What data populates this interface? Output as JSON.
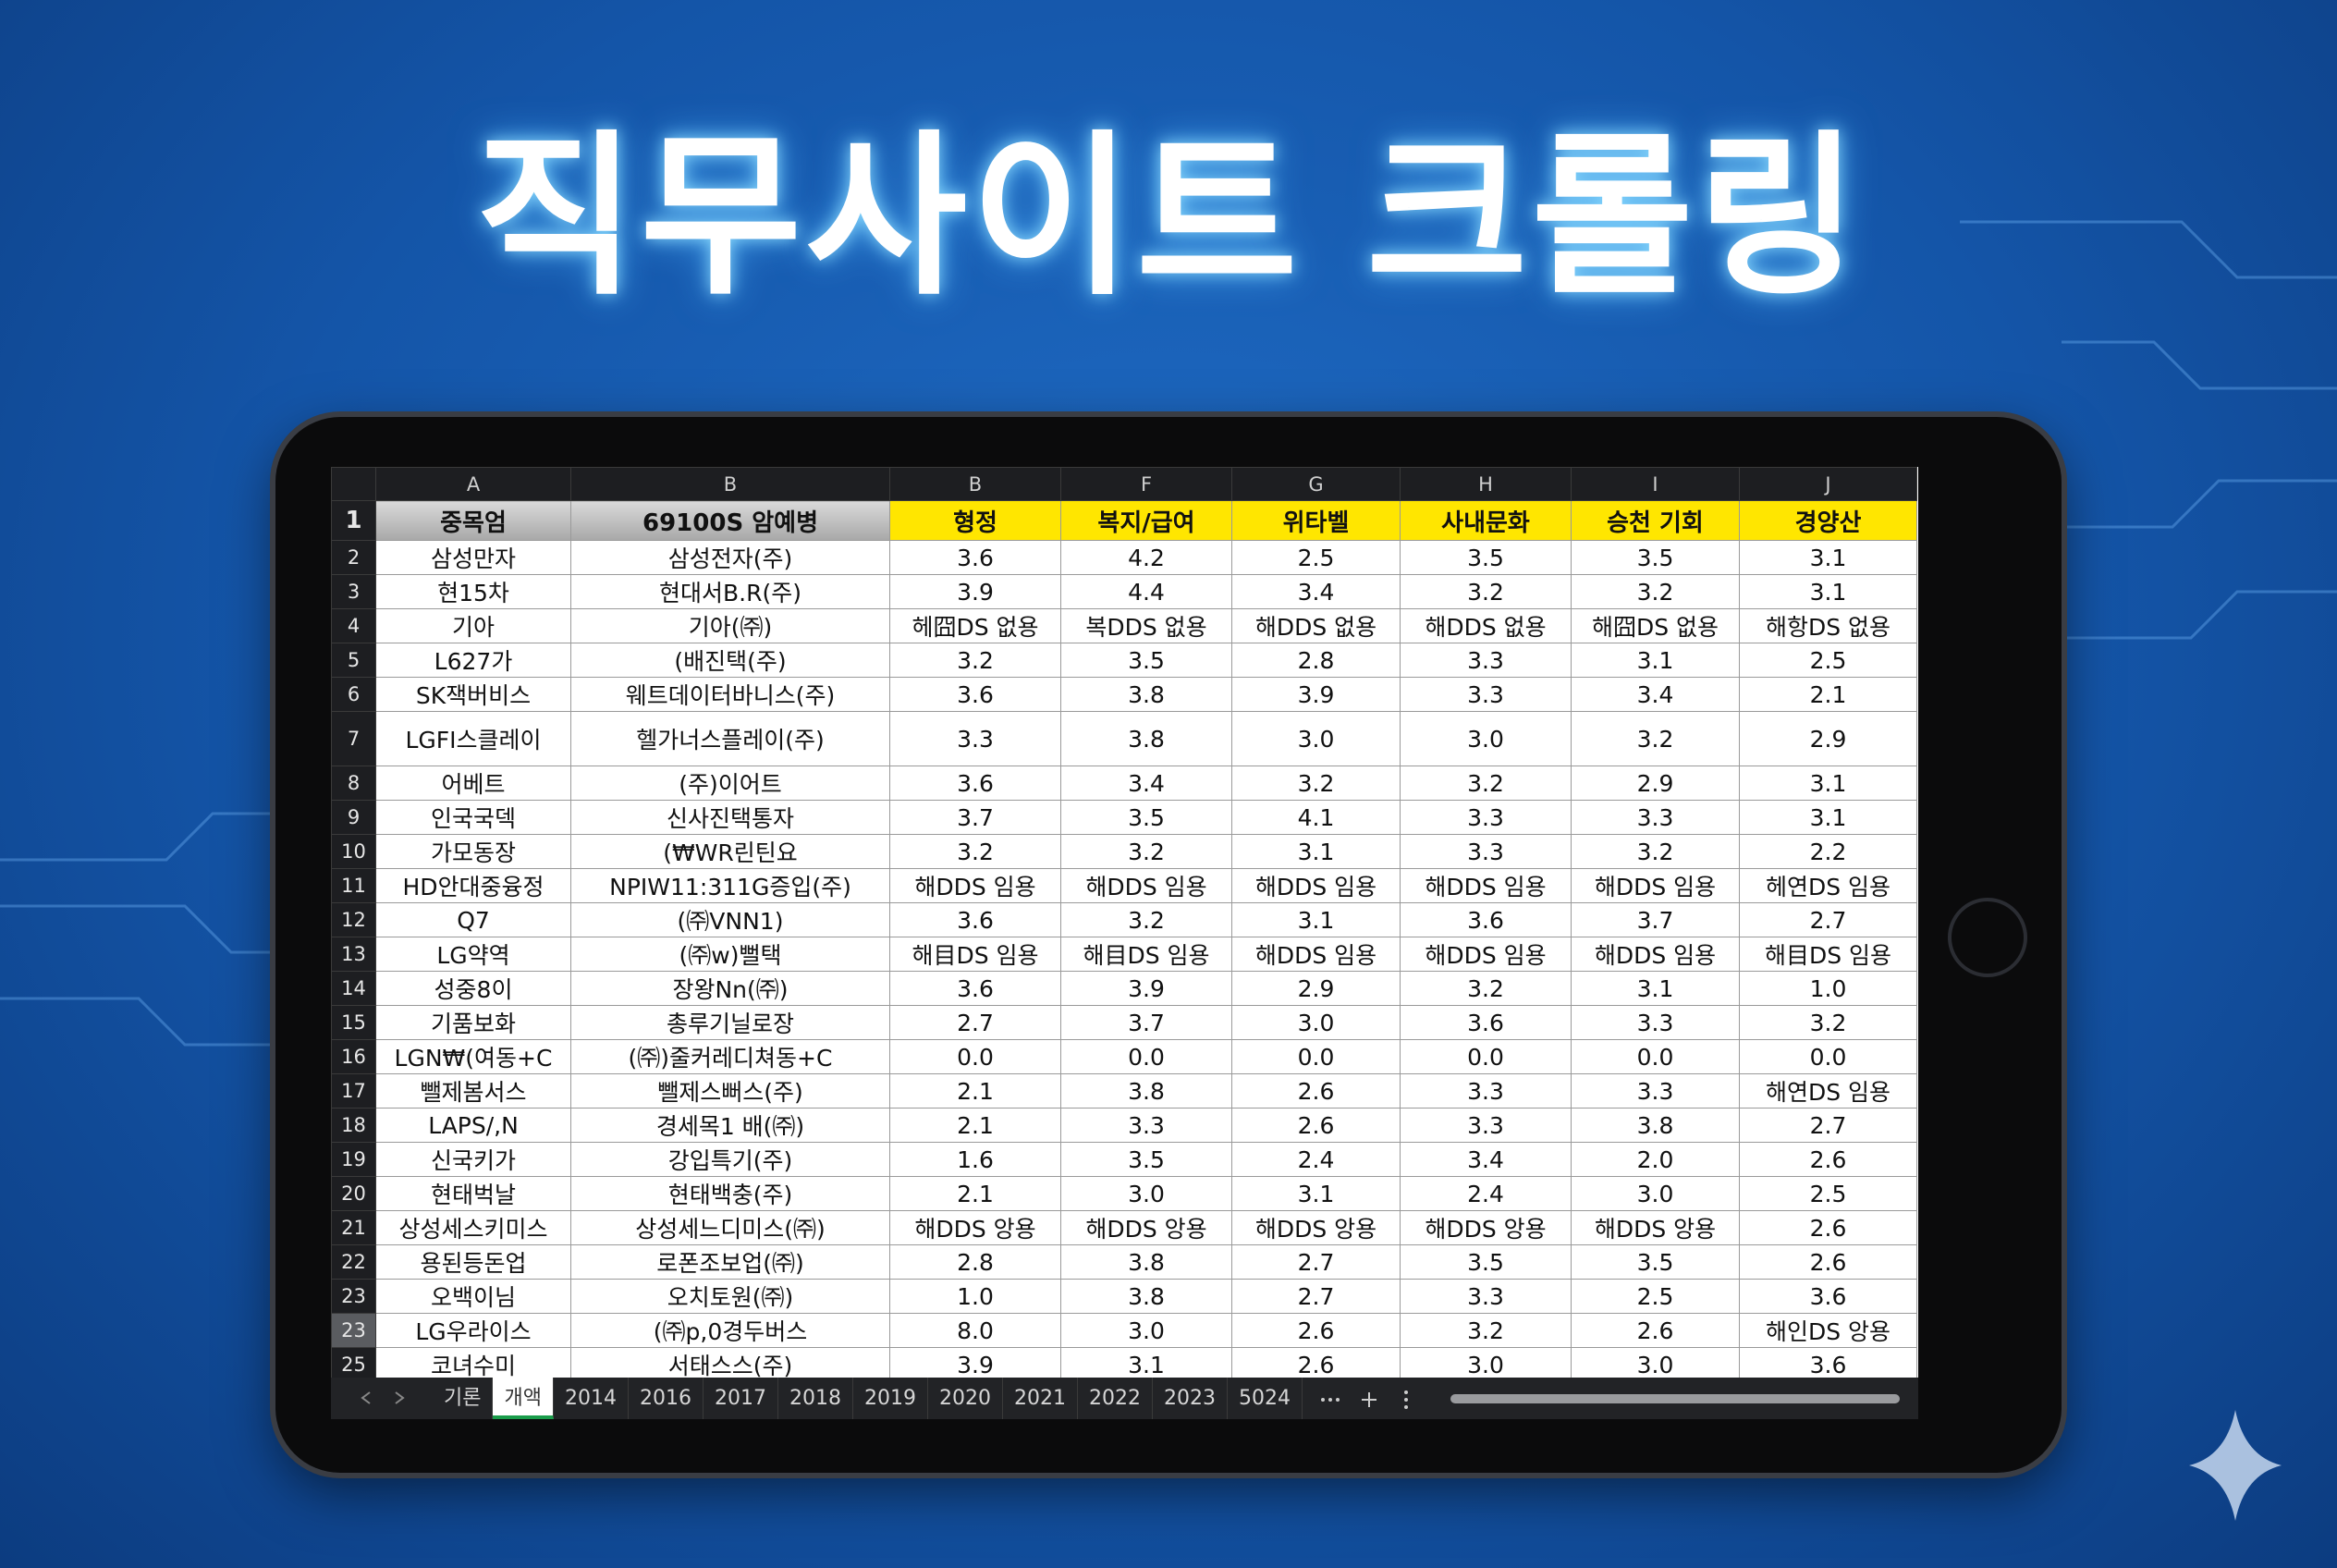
{
  "title": "직무사이트 크롤링",
  "sheet": {
    "column_letters": [
      "A",
      "B",
      "B",
      "F",
      "G",
      "H",
      "I",
      "J"
    ],
    "row_numbers": [
      "1",
      "2",
      "3",
      "4",
      "5",
      "6",
      "7",
      "8",
      "9",
      "10",
      "11",
      "12",
      "13",
      "14",
      "15",
      "16",
      "17",
      "18",
      "19",
      "20",
      "21",
      "22",
      "23",
      "23",
      "25"
    ],
    "rows": [
      [
        "중목엄",
        "69100S 암예병",
        "형정",
        "복지/급여",
        "위타벨",
        "사내문화",
        "승천 기회",
        "경양산"
      ],
      [
        "삼성만자",
        "삼성전자(주)",
        "3.6",
        "4.2",
        "2.5",
        "3.5",
        "3.5",
        "3.1"
      ],
      [
        "현15차",
        "현대서B.R(주)",
        "3.9",
        "4.4",
        "3.4",
        "3.2",
        "3.2",
        "3.1"
      ],
      [
        "기아",
        "기아(㈜)",
        "헤囧DS 없용",
        "복DDS 없용",
        "해DDS 없용",
        "해DDS 없용",
        "해囧DS 없용",
        "해항DS 없용"
      ],
      [
        "L627가",
        "(배진택(주)",
        "3.2",
        "3.5",
        "2.8",
        "3.3",
        "3.1",
        "2.5"
      ],
      [
        "SK잭버비스",
        "웨트데이터바니스(주)",
        "3.6",
        "3.8",
        "3.9",
        "3.3",
        "3.4",
        "2.1"
      ],
      [
        "LGFI스클레이",
        "헬가너스플레이(주)",
        "3.3",
        "3.8",
        "3.0",
        "3.0",
        "3.2",
        "2.9"
      ],
      [
        "어베트",
        "(주)이어트",
        "3.6",
        "3.4",
        "3.2",
        "3.2",
        "2.9",
        "3.1"
      ],
      [
        "인국국덱",
        "신사진택통자",
        "3.7",
        "3.5",
        "4.1",
        "3.3",
        "3.3",
        "3.1"
      ],
      [
        "가모동장",
        "(₩WR린틴요",
        "3.2",
        "3.2",
        "3.1",
        "3.3",
        "3.2",
        "2.2"
      ],
      [
        "HD안대중융정",
        "NPIW11:311G증입(주)",
        "해DDS 임용",
        "해DDS 임용",
        "해DDS 임용",
        "해DDS 임용",
        "해DDS 임용",
        "헤연DS 임용"
      ],
      [
        "Q7",
        "(㈜VNN1)",
        "3.6",
        "3.2",
        "3.1",
        "3.6",
        "3.7",
        "2.7"
      ],
      [
        "LG약역",
        "(㈜w)뻘택",
        "해目DS 임용",
        "해目DS 임용",
        "해DDS 임용",
        "해DDS 임용",
        "해DDS 임용",
        "해目DS 임용"
      ],
      [
        "성중8이",
        "장왕Nn(㈜)",
        "3.6",
        "3.9",
        "2.9",
        "3.2",
        "3.1",
        "1.0"
      ],
      [
        "기품보화",
        "총루기닐로장",
        "2.7",
        "3.7",
        "3.0",
        "3.6",
        "3.3",
        "3.2"
      ],
      [
        "LGN₩(여동+C",
        "(㈜)줄커레디쳐동+C",
        "0.0",
        "0.0",
        "0.0",
        "0.0",
        "0.0",
        "0.0"
      ],
      [
        "뺄제봄서스",
        "뺄제스뻐스(주)",
        "2.1",
        "3.8",
        "2.6",
        "3.3",
        "3.3",
        "해연DS 임용"
      ],
      [
        "LAPS/,N",
        "경세목1 배(㈜)",
        "2.1",
        "3.3",
        "2.6",
        "3.3",
        "3.8",
        "2.7"
      ],
      [
        "신국키가",
        "강입특기(주)",
        "1.6",
        "3.5",
        "2.4",
        "3.4",
        "2.0",
        "2.6"
      ],
      [
        "현태벅날",
        "현태백충(주)",
        "2.1",
        "3.0",
        "3.1",
        "2.4",
        "3.0",
        "2.5"
      ],
      [
        "상성세스키미스",
        "상성세느디미스(㈜)",
        "해DDS 앙용",
        "해DDS 앙용",
        "해DDS 앙용",
        "해DDS 앙용",
        "해DDS 앙용",
        "2.6"
      ],
      [
        "용된등돈업",
        "로폰조보업(㈜)",
        "2.8",
        "3.8",
        "2.7",
        "3.5",
        "3.5",
        "2.6"
      ],
      [
        "오백이님",
        "오치토원(㈜)",
        "1.0",
        "3.8",
        "2.7",
        "3.3",
        "2.5",
        "3.6"
      ],
      [
        "LG우라이스",
        "(㈜p,0경두버스",
        "8.0",
        "3.0",
        "2.6",
        "3.2",
        "2.6",
        "해인DS 앙용"
      ],
      [
        "코녀수미",
        "서태스스(주)",
        "3.9",
        "3.1",
        "2.6",
        "3.0",
        "3.0",
        "3.6"
      ]
    ]
  },
  "tabs": [
    "기론",
    "개액",
    "2014",
    "2016",
    "2017",
    "2018",
    "2019",
    "2020",
    "2021",
    "2022",
    "2023",
    "5024"
  ]
}
